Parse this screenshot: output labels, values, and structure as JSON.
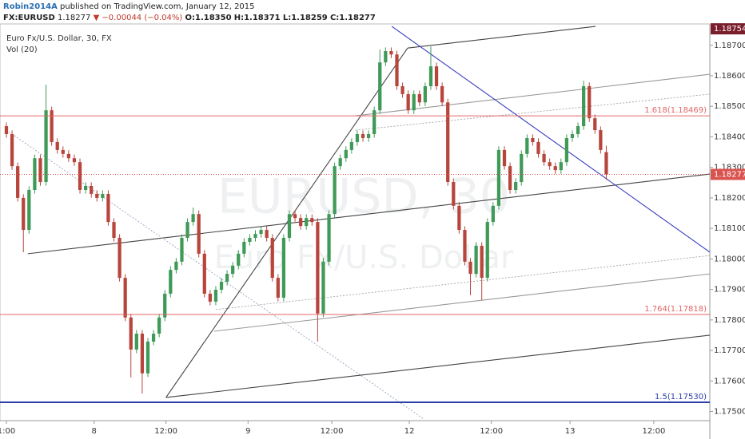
{
  "chart_data": {
    "type": "candlestick",
    "header": {
      "author": "Robin2014A",
      "published": "published on TradingView.com, January 12, 2015",
      "symbol": "FX:EURUSD",
      "price": "1.18277",
      "change": "▼ −0.00044 (−0.04%)",
      "ohlc": [
        "O:1.18350",
        "H:1.18371",
        "L:1.18259",
        "C:1.18277"
      ]
    },
    "title": "Euro Fx/U.S. Dollar, 30, FX",
    "indicator": "Vol (20)",
    "watermark": [
      "EURUSD, 30",
      "Euro Fx/U.S. Dollar"
    ],
    "up_color": "#3f9a58",
    "down_color": "#b8453c",
    "open": [
      1.18435,
      1.18409,
      1.18304,
      1.182,
      1.18095,
      1.18226,
      1.1833,
      1.18252,
      1.18487,
      1.18383,
      1.18357,
      1.18344,
      1.1833,
      1.18317,
      1.18226,
      1.18239,
      1.18213,
      1.182,
      1.18213,
      1.18121,
      1.18069,
      1.17938,
      1.17808,
      1.17703,
      1.17755,
      1.17625,
      1.17729,
      1.17755,
      1.17808,
      1.17886,
      1.17964,
      1.17991,
      1.18069,
      1.18121,
      1.18147,
      1.18017,
      1.17886,
      1.1786,
      1.17899,
      1.17925,
      1.17951,
      1.17978,
      1.18017,
      1.18056,
      1.18069,
      1.18082,
      1.18095,
      1.18069,
      1.17938,
      1.17873,
      1.18069,
      1.18147,
      1.18134,
      1.18108,
      1.18134,
      1.18121,
      1.17821,
      1.17991,
      1.18147,
      1.18304,
      1.1833,
      1.18357,
      1.18383,
      1.18409,
      1.18396,
      1.18409,
      1.18487,
      1.18644,
      1.18681,
      1.1867,
      1.18566,
      1.1854,
      1.18487,
      1.1854,
      1.18513,
      1.18566,
      1.18631,
      1.18566,
      1.18513,
      1.18252,
      1.18174,
      1.18095,
      1.17991,
      1.17951,
      1.18043,
      1.17938,
      1.18121,
      1.18174,
      1.18357,
      1.18304,
      1.18226,
      1.18252,
      1.18344,
      1.18396,
      1.18383,
      1.18344,
      1.18317,
      1.18304,
      1.18291,
      1.18317,
      1.18396,
      1.18409,
      1.18435,
      1.18566,
      1.18461,
      1.18422,
      1.1835
    ],
    "high": [
      1.18447,
      1.18421,
      1.18316,
      1.18212,
      1.18238,
      1.18342,
      1.18342,
      1.18571,
      1.18499,
      1.18395,
      1.18369,
      1.18356,
      1.18342,
      1.18329,
      1.18251,
      1.18251,
      1.18225,
      1.18225,
      1.18225,
      1.18133,
      1.18081,
      1.1795,
      1.1782,
      1.17767,
      1.17767,
      1.17741,
      1.17767,
      1.1782,
      1.17898,
      1.17976,
      1.18003,
      1.18081,
      1.18133,
      1.18168,
      1.18159,
      1.18029,
      1.17898,
      1.17911,
      1.17937,
      1.17963,
      1.1799,
      1.18029,
      1.18068,
      1.18081,
      1.18094,
      1.18107,
      1.18107,
      1.18081,
      1.1795,
      1.18081,
      1.18159,
      1.18159,
      1.18146,
      1.18146,
      1.18146,
      1.18133,
      1.18003,
      1.18159,
      1.18316,
      1.18342,
      1.18369,
      1.18395,
      1.18421,
      1.18421,
      1.18421,
      1.18499,
      1.18686,
      1.18693,
      1.18693,
      1.18682,
      1.18578,
      1.18552,
      1.18552,
      1.18552,
      1.18578,
      1.18696,
      1.18643,
      1.18578,
      1.18525,
      1.18264,
      1.18186,
      1.18107,
      1.18003,
      1.18055,
      1.18055,
      1.18133,
      1.18186,
      1.18369,
      1.18369,
      1.18316,
      1.18264,
      1.18356,
      1.18408,
      1.18408,
      1.18395,
      1.18356,
      1.18329,
      1.18316,
      1.18329,
      1.18408,
      1.18421,
      1.18447,
      1.18584,
      1.18578,
      1.18473,
      1.18434,
      1.18371
    ],
    "low": [
      1.18397,
      1.18292,
      1.18188,
      1.18022,
      1.18083,
      1.18214,
      1.1824,
      1.1824,
      1.18371,
      1.18345,
      1.18332,
      1.18318,
      1.18305,
      1.18214,
      1.18214,
      1.18201,
      1.18188,
      1.18188,
      1.18109,
      1.18057,
      1.17926,
      1.17796,
      1.17612,
      1.17691,
      1.17559,
      1.17613,
      1.17717,
      1.17743,
      1.17796,
      1.17874,
      1.17952,
      1.17979,
      1.18057,
      1.18109,
      1.18005,
      1.17874,
      1.17848,
      1.17848,
      1.17887,
      1.17913,
      1.17939,
      1.17966,
      1.18005,
      1.18044,
      1.18057,
      1.1807,
      1.18057,
      1.17926,
      1.17861,
      1.17861,
      1.18057,
      1.18122,
      1.18096,
      1.18096,
      1.18109,
      1.17729,
      1.17809,
      1.17979,
      1.18135,
      1.18292,
      1.18318,
      1.18345,
      1.18371,
      1.18384,
      1.18384,
      1.18397,
      1.18475,
      1.18632,
      1.18658,
      1.18554,
      1.18528,
      1.18475,
      1.18475,
      1.18501,
      1.18501,
      1.18554,
      1.18554,
      1.18501,
      1.1824,
      1.18162,
      1.18083,
      1.17979,
      1.17881,
      1.17939,
      1.17865,
      1.17926,
      1.18109,
      1.18162,
      1.18292,
      1.18214,
      1.18214,
      1.1824,
      1.18332,
      1.18371,
      1.18332,
      1.18305,
      1.18292,
      1.18279,
      1.18279,
      1.18305,
      1.18384,
      1.18397,
      1.18423,
      1.18449,
      1.1841,
      1.18345,
      1.18259
    ],
    "close": [
      1.18409,
      1.18304,
      1.182,
      1.18095,
      1.18226,
      1.1833,
      1.18252,
      1.18487,
      1.18383,
      1.18357,
      1.18344,
      1.1833,
      1.18317,
      1.18226,
      1.18239,
      1.18213,
      1.182,
      1.18213,
      1.18121,
      1.18069,
      1.17938,
      1.17808,
      1.17703,
      1.17755,
      1.17625,
      1.17729,
      1.17755,
      1.17808,
      1.17886,
      1.17964,
      1.17991,
      1.18069,
      1.18121,
      1.18147,
      1.18017,
      1.17886,
      1.1786,
      1.17899,
      1.17925,
      1.17951,
      1.17978,
      1.18017,
      1.18056,
      1.18069,
      1.18082,
      1.18095,
      1.18069,
      1.17938,
      1.17873,
      1.18069,
      1.18147,
      1.18134,
      1.18108,
      1.18134,
      1.18121,
      1.17821,
      1.17991,
      1.18147,
      1.18304,
      1.1833,
      1.18357,
      1.18383,
      1.18409,
      1.18396,
      1.18409,
      1.18487,
      1.18644,
      1.18681,
      1.1867,
      1.18566,
      1.1854,
      1.18487,
      1.1854,
      1.18513,
      1.18566,
      1.18631,
      1.18566,
      1.18513,
      1.18252,
      1.18174,
      1.18095,
      1.17991,
      1.17951,
      1.18043,
      1.17938,
      1.18121,
      1.18174,
      1.18357,
      1.18304,
      1.18226,
      1.18252,
      1.18344,
      1.18396,
      1.18383,
      1.18344,
      1.18317,
      1.18304,
      1.18291,
      1.18317,
      1.18396,
      1.18409,
      1.18435,
      1.18566,
      1.18461,
      1.18422,
      1.18357,
      1.18277
    ],
    "xlim": [
      0,
      124.3
    ],
    "xticks": [
      {
        "value": 0,
        "label": "1:00"
      },
      {
        "value": 15.5,
        "label": "8"
      },
      {
        "value": 28.2,
        "label": "12:00"
      },
      {
        "value": 42.7,
        "label": "9"
      },
      {
        "value": 57.5,
        "label": "12:00"
      },
      {
        "value": 71.2,
        "label": "12"
      },
      {
        "value": 85.7,
        "label": "12:00"
      },
      {
        "value": 99.6,
        "label": "13"
      },
      {
        "value": 114.4,
        "label": "12:00"
      }
    ],
    "ylim": [
      1.1747,
      1.1877
    ],
    "yticks": [
      {
        "value": 1.175,
        "label": "1.17500"
      },
      {
        "value": 1.176,
        "label": "1.17600"
      },
      {
        "value": 1.177,
        "label": "1.17700"
      },
      {
        "value": 1.178,
        "label": "1.17800"
      },
      {
        "value": 1.179,
        "label": "1.17900"
      },
      {
        "value": 1.18,
        "label": "1.18000"
      },
      {
        "value": 1.181,
        "label": "1.18100"
      },
      {
        "value": 1.182,
        "label": "1.18200"
      },
      {
        "value": 1.183,
        "label": "1.18300"
      },
      {
        "value": 1.184,
        "label": "1.18400"
      },
      {
        "value": 1.185,
        "label": "1.18500"
      },
      {
        "value": 1.186,
        "label": "1.18600"
      },
      {
        "value": 1.187,
        "label": "1.18700"
      }
    ],
    "levels": [
      {
        "label": "1.618(1.18469)",
        "value": 1.18469,
        "color": "#e06666",
        "width": 1
      },
      {
        "label": "1.764(1.17818)",
        "value": 1.17818,
        "color": "#e06666",
        "width": 1
      },
      {
        "label": "1.5(1.17530)",
        "value": 1.1753,
        "color": "#2b3fa8",
        "width": 2
      }
    ],
    "price_labels": [
      {
        "value": 1.18754,
        "color": "#7a1e2c"
      },
      {
        "value": 1.18277,
        "color": "#d9534f"
      }
    ],
    "trend_lines": [
      {
        "x": [
          3.8,
          124.3
        ],
        "y": [
          1.18017,
          1.18278
        ],
        "color": "#444444",
        "style": "solid"
      },
      {
        "x": [
          28.2,
          124.3
        ],
        "y": [
          1.17546,
          1.1775
        ],
        "color": "#444444",
        "style": "solid"
      },
      {
        "x": [
          28.2,
          70.9
        ],
        "y": [
          1.17546,
          1.18691
        ],
        "color": "#444444",
        "style": "solid"
      },
      {
        "x": [
          70.9,
          104.1
        ],
        "y": [
          1.18691,
          1.18762
        ],
        "color": "#444444",
        "style": "solid"
      },
      {
        "x": [
          36.7,
          124.3
        ],
        "y": [
          1.17763,
          1.17951
        ],
        "color": "#999999",
        "style": "solid"
      },
      {
        "x": [
          61.7,
          124.3
        ],
        "y": [
          1.18469,
          1.18605
        ],
        "color": "#999999",
        "style": "solid"
      },
      {
        "x": [
          37.0,
          124.3
        ],
        "y": [
          1.17834,
          1.18011
        ],
        "color": "#999999",
        "style": "dotted"
      },
      {
        "x": [
          61.7,
          124.3
        ],
        "y": [
          1.18422,
          1.1854
        ],
        "color": "#999999",
        "style": "dotted"
      },
      {
        "x": [
          68.1,
          124.3
        ],
        "y": [
          1.18762,
          1.18022
        ],
        "color": "#3a3fc0",
        "style": "solid"
      },
      {
        "x": [
          0,
          73.7
        ],
        "y": [
          1.18422,
          1.17476
        ],
        "color": "#8899bb",
        "style": "dotted"
      }
    ]
  }
}
